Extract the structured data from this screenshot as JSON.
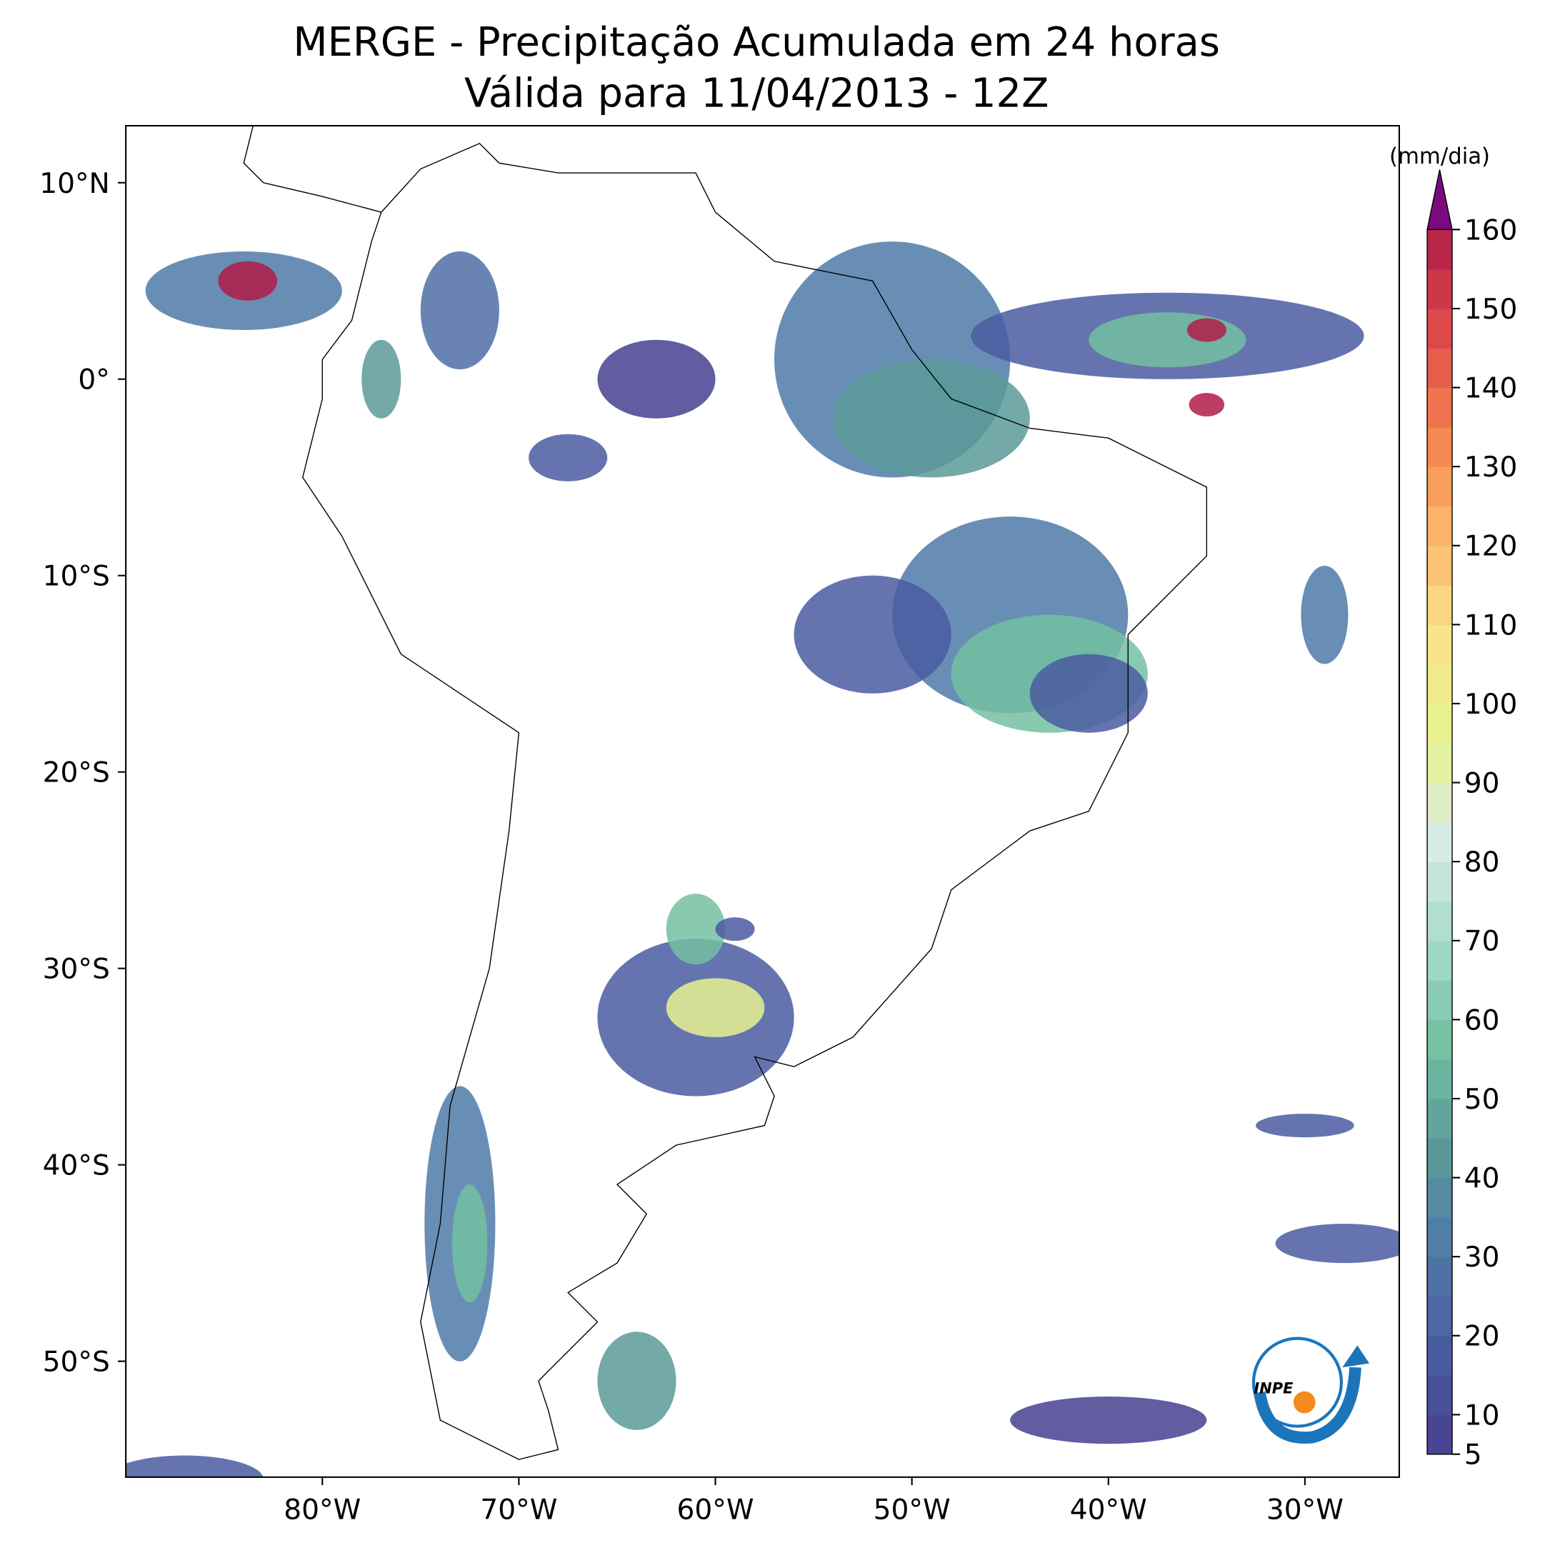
{
  "map": {
    "title": "MERGE - Precipitação Acumulada em 24 horas",
    "subtitle": "Válida para 11/04/2013 - 12Z",
    "lon_lim": [
      -90,
      -25.2
    ],
    "lat_lim": [
      -55.9,
      12.9
    ],
    "lon_ticks": [
      {
        "value": -80,
        "label": "80°W"
      },
      {
        "value": -70,
        "label": "70°W"
      },
      {
        "value": -60,
        "label": "60°W"
      },
      {
        "value": -50,
        "label": "50°W"
      },
      {
        "value": -40,
        "label": "40°W"
      },
      {
        "value": -30,
        "label": "30°W"
      }
    ],
    "lat_ticks": [
      {
        "value": 10,
        "label": "10°N"
      },
      {
        "value": 0,
        "label": "0°"
      },
      {
        "value": -10,
        "label": "10°S"
      },
      {
        "value": -20,
        "label": "20°S"
      },
      {
        "value": -30,
        "label": "30°S"
      },
      {
        "value": -40,
        "label": "40°S"
      },
      {
        "value": -50,
        "label": "50°S"
      }
    ],
    "colorbar": {
      "label": "(mm/dia)",
      "range": [
        5,
        160
      ],
      "step": 5,
      "ticks": [
        5,
        10,
        20,
        30,
        40,
        50,
        60,
        70,
        80,
        90,
        100,
        110,
        120,
        130,
        140,
        150,
        160
      ],
      "colors": [
        "#47408f",
        "#4a5ca0",
        "#4f7aa8",
        "#5a9a98",
        "#73c0a2",
        "#a6dbc8",
        "#d8ece7",
        "#e6f28f",
        "#fbe38b",
        "#fbb86a",
        "#f4824f",
        "#e0494a",
        "#b01c48"
      ],
      "extend_color": "#7b0a7f"
    },
    "logo": "INPE"
  }
}
